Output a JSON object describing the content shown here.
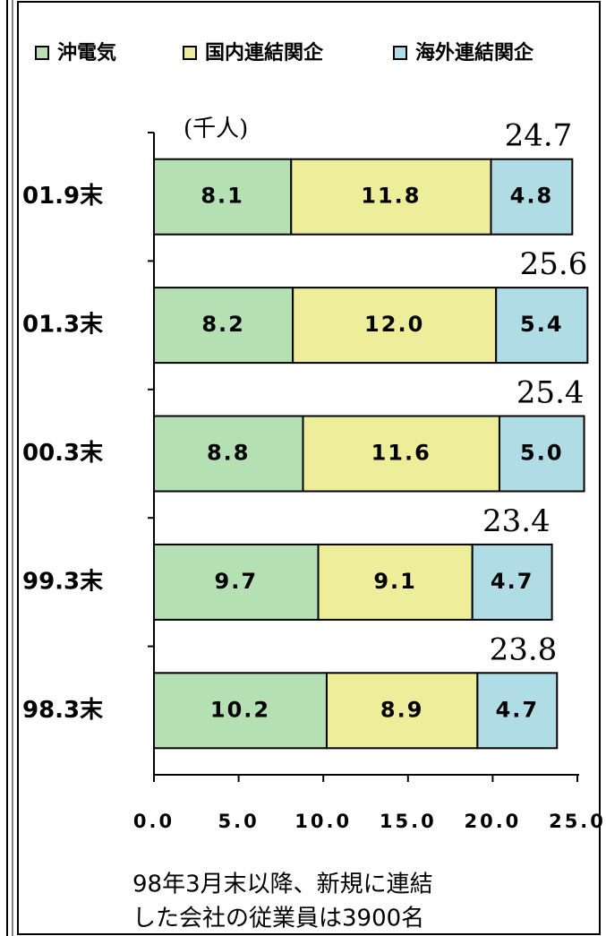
{
  "chart_data": {
    "type": "stacked_barh",
    "unit_label": "(千人)",
    "categories": [
      "01.9末",
      "01.3末",
      "00.3末",
      "99.3末",
      "98.3末"
    ],
    "series": [
      {
        "name": "沖電気",
        "color": "#b4e0b4",
        "values": [
          8.1,
          8.2,
          8.8,
          9.7,
          10.2
        ],
        "value_labels": [
          "8.1",
          "8.2",
          "8.8",
          "9.7",
          "10.2"
        ]
      },
      {
        "name": "国内連結関企",
        "color": "#eeee9a",
        "values": [
          11.8,
          12.0,
          11.6,
          9.1,
          8.9
        ],
        "value_labels": [
          "11.8",
          "12.0",
          "11.6",
          "9.1",
          "8.9"
        ]
      },
      {
        "name": "海外連結関企",
        "color": "#b0dce6",
        "values": [
          4.8,
          5.4,
          5.0,
          4.7,
          4.7
        ],
        "value_labels": [
          "4.8",
          "5.4",
          "5.0",
          "4.7",
          "4.7"
        ]
      }
    ],
    "totals": [
      24.7,
      25.6,
      25.4,
      23.4,
      23.8
    ],
    "xlim": [
      0,
      25
    ],
    "xticks": [
      {
        "value": 0,
        "label": "0.0"
      },
      {
        "value": 5,
        "label": "5.0"
      },
      {
        "value": 10,
        "label": "10.0"
      },
      {
        "value": 15,
        "label": "15.0"
      },
      {
        "value": 20,
        "label": "20.0"
      },
      {
        "value": 25,
        "label": "25.0"
      }
    ],
    "note": [
      "98年3月末以降、新規に連結",
      "した会社の従業員は3900名"
    ]
  }
}
